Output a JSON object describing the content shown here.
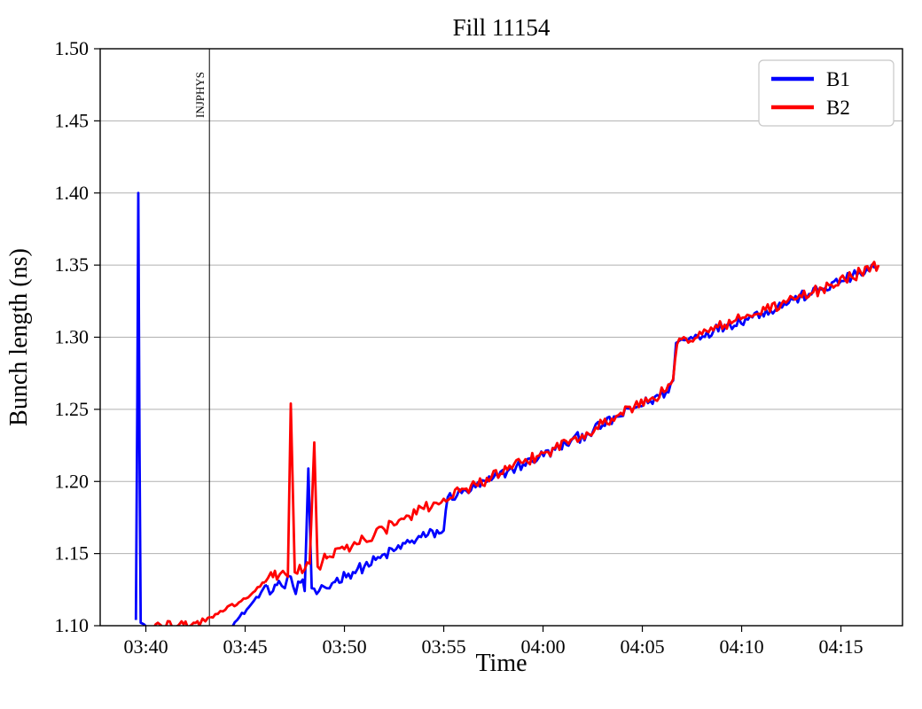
{
  "figure": {
    "background": "#ffffff",
    "text_color": "#000000"
  },
  "chart_data": {
    "type": "line",
    "title": "Fill 11154",
    "xlabel": "Time",
    "ylabel": "Bunch length (ns)",
    "x_axis_unit": "time of day HH:MM, numeric x = minutes after 03:00",
    "xlim": [
      37.7,
      78.1
    ],
    "ylim": [
      1.1,
      1.5
    ],
    "grid": "horizontal",
    "grid_color": "#b0b0b0",
    "frame_color": "#000000",
    "xticks": [
      {
        "v": 40,
        "label": "03:40"
      },
      {
        "v": 45,
        "label": "03:45"
      },
      {
        "v": 50,
        "label": "03:50"
      },
      {
        "v": 55,
        "label": "03:55"
      },
      {
        "v": 60,
        "label": "04:00"
      },
      {
        "v": 65,
        "label": "04:05"
      },
      {
        "v": 70,
        "label": "04:10"
      },
      {
        "v": 75,
        "label": "04:15"
      }
    ],
    "yticks": [
      {
        "v": 1.1,
        "label": "1.10"
      },
      {
        "v": 1.15,
        "label": "1.15"
      },
      {
        "v": 1.2,
        "label": "1.20"
      },
      {
        "v": 1.25,
        "label": "1.25"
      },
      {
        "v": 1.3,
        "label": "1.30"
      },
      {
        "v": 1.35,
        "label": "1.35"
      },
      {
        "v": 1.4,
        "label": "1.40"
      },
      {
        "v": 1.45,
        "label": "1.45"
      },
      {
        "v": 1.5,
        "label": "1.50"
      }
    ],
    "legend": {
      "position": "upper right",
      "entries": [
        {
          "label": "B1",
          "color": "#0000ff"
        },
        {
          "label": "B2",
          "color": "#ff0000"
        }
      ]
    },
    "annotations": [
      {
        "type": "vline",
        "x": 43.2,
        "label": "INJPHYS",
        "color": "#000000"
      }
    ],
    "series": [
      {
        "name": "B1",
        "color": "#0000ff",
        "line_width": 2.8,
        "segments": [
          {
            "noise": 0.002,
            "points": [
              [
                39.5,
                1.104
              ],
              [
                39.57,
                1.256
              ],
              [
                39.62,
                1.4
              ],
              [
                39.68,
                1.22
              ],
              [
                39.74,
                1.102
              ],
              [
                39.9,
                1.101
              ],
              [
                40.05,
                1.099
              ],
              [
                40.18,
                1.094
              ]
            ]
          },
          {
            "noise": 0.0015,
            "points": [
              [
                44.1,
                1.097
              ],
              [
                44.6,
                1.104
              ],
              [
                45.2,
                1.113
              ],
              [
                45.8,
                1.123
              ],
              [
                46.1,
                1.128
              ]
            ]
          },
          {
            "noise": 0.005,
            "points": [
              [
                46.1,
                1.128
              ],
              [
                46.4,
                1.124
              ],
              [
                46.7,
                1.131
              ],
              [
                47.0,
                1.126
              ],
              [
                47.3,
                1.134
              ],
              [
                47.55,
                1.122
              ],
              [
                47.8,
                1.13
              ],
              [
                48.0,
                1.124
              ],
              [
                48.18,
                1.209
              ],
              [
                48.35,
                1.126
              ],
              [
                48.6,
                1.122
              ],
              [
                48.85,
                1.128
              ],
              [
                49.1,
                1.126
              ],
              [
                49.4,
                1.13
              ]
            ]
          },
          {
            "noise": 0.004,
            "points": [
              [
                49.4,
                1.13
              ],
              [
                50.2,
                1.136
              ],
              [
                51,
                1.141
              ],
              [
                51.8,
                1.147
              ],
              [
                52.6,
                1.153
              ],
              [
                53.4,
                1.159
              ],
              [
                54.2,
                1.163
              ],
              [
                55.0,
                1.166
              ],
              [
                55.2,
                1.189
              ],
              [
                55.9,
                1.192
              ],
              [
                56.6,
                1.196
              ],
              [
                57.4,
                1.201
              ],
              [
                58.2,
                1.207
              ],
              [
                59,
                1.212
              ],
              [
                59.8,
                1.217
              ],
              [
                60.6,
                1.222
              ],
              [
                61.4,
                1.228
              ],
              [
                62.2,
                1.233
              ],
              [
                63,
                1.239
              ],
              [
                63.8,
                1.245
              ],
              [
                64.6,
                1.251
              ],
              [
                65.4,
                1.256
              ],
              [
                66.2,
                1.262
              ],
              [
                66.55,
                1.27
              ],
              [
                66.7,
                1.296
              ],
              [
                67.1,
                1.298
              ],
              [
                67.8,
                1.301
              ],
              [
                68.6,
                1.305
              ],
              [
                69.4,
                1.309
              ],
              [
                70.2,
                1.313
              ],
              [
                71,
                1.317
              ],
              [
                71.8,
                1.321
              ],
              [
                72.6,
                1.326
              ],
              [
                73.4,
                1.33
              ],
              [
                74.2,
                1.334
              ],
              [
                75,
                1.339
              ],
              [
                75.8,
                1.343
              ],
              [
                76.8,
                1.349
              ]
            ]
          }
        ]
      },
      {
        "name": "B2",
        "color": "#ff0000",
        "line_width": 2.8,
        "segments": [
          {
            "noise": 0.0035,
            "points": [
              [
                40.3,
                1.099
              ],
              [
                40.6,
                1.102
              ],
              [
                40.9,
                1.098
              ],
              [
                41.2,
                1.103
              ],
              [
                41.5,
                1.099
              ],
              [
                41.8,
                1.103
              ],
              [
                42.1,
                1.099
              ],
              [
                42.4,
                1.102
              ],
              [
                42.7,
                1.1
              ],
              [
                43.0,
                1.103
              ],
              [
                43.25,
                1.106
              ]
            ]
          },
          {
            "noise": 0.0015,
            "points": [
              [
                43.25,
                1.106
              ],
              [
                44.0,
                1.111
              ],
              [
                44.8,
                1.117
              ],
              [
                45.5,
                1.124
              ],
              [
                46.0,
                1.13
              ]
            ]
          },
          {
            "noise": 0.005,
            "points": [
              [
                46.0,
                1.13
              ],
              [
                46.3,
                1.137
              ],
              [
                46.6,
                1.132
              ],
              [
                46.9,
                1.138
              ],
              [
                47.15,
                1.134
              ],
              [
                47.3,
                1.254
              ],
              [
                47.5,
                1.137
              ],
              [
                47.75,
                1.142
              ],
              [
                48.0,
                1.139
              ],
              [
                48.25,
                1.143
              ],
              [
                48.48,
                1.227
              ],
              [
                48.65,
                1.141
              ],
              [
                48.9,
                1.145
              ],
              [
                49.2,
                1.148
              ]
            ]
          },
          {
            "noise": 0.004,
            "points": [
              [
                49.2,
                1.148
              ],
              [
                50,
                1.153
              ],
              [
                51,
                1.16
              ],
              [
                52,
                1.167
              ],
              [
                53,
                1.174
              ],
              [
                54,
                1.181
              ],
              [
                55,
                1.188
              ],
              [
                55.8,
                1.193
              ],
              [
                56.6,
                1.198
              ],
              [
                57.4,
                1.203
              ],
              [
                58.2,
                1.208
              ],
              [
                59,
                1.213
              ],
              [
                59.8,
                1.218
              ],
              [
                60.6,
                1.223
              ],
              [
                61.4,
                1.229
              ],
              [
                62.2,
                1.234
              ],
              [
                63,
                1.24
              ],
              [
                63.8,
                1.246
              ],
              [
                64.6,
                1.252
              ],
              [
                65.4,
                1.257
              ],
              [
                66.2,
                1.263
              ],
              [
                66.55,
                1.271
              ],
              [
                66.75,
                1.295
              ],
              [
                67.2,
                1.299
              ],
              [
                68,
                1.302
              ],
              [
                68.8,
                1.307
              ],
              [
                69.6,
                1.311
              ],
              [
                70.4,
                1.315
              ],
              [
                71.2,
                1.319
              ],
              [
                72,
                1.323
              ],
              [
                72.8,
                1.327
              ],
              [
                73.6,
                1.331
              ],
              [
                74.4,
                1.336
              ],
              [
                75.2,
                1.34
              ],
              [
                76,
                1.345
              ],
              [
                76.9,
                1.35
              ]
            ]
          }
        ]
      }
    ]
  }
}
